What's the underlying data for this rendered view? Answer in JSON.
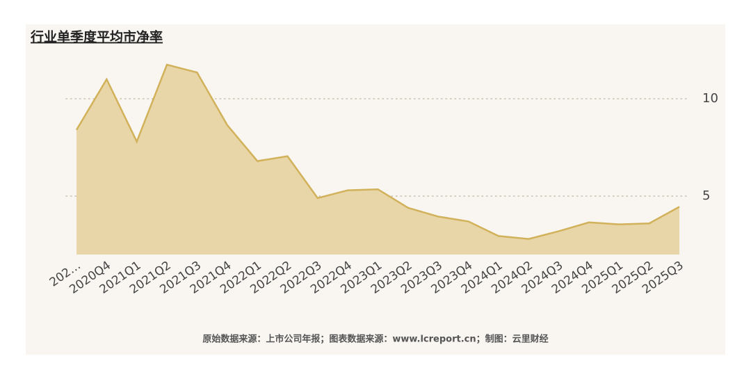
{
  "chart_data": {
    "type": "area",
    "title": "行业单季度平均市净率",
    "source": "原始数据来源：上市公司年报；图表数据来源：www.lcreport.cn；制图：云里财经",
    "categories": [
      "202…",
      "2020Q4",
      "2021Q1",
      "2021Q2",
      "2021Q3",
      "2021Q4",
      "2022Q1",
      "2022Q2",
      "2022Q3",
      "2022Q4",
      "2023Q1",
      "2023Q2",
      "2023Q3",
      "2023Q4",
      "2024Q1",
      "2024Q2",
      "2024Q3",
      "2024Q4",
      "2025Q1",
      "2025Q2",
      "2025Q3"
    ],
    "values": [
      8.4,
      11.0,
      7.8,
      11.75,
      11.35,
      8.65,
      6.8,
      7.05,
      4.9,
      5.3,
      5.35,
      4.4,
      3.95,
      3.7,
      2.95,
      2.8,
      3.2,
      3.65,
      3.55,
      3.6,
      4.45
    ],
    "color": "#d1b15a",
    "fill_color": "#e8d6a8",
    "ylim": [
      2,
      12
    ],
    "yticks": [
      5,
      10
    ],
    "y_axis_side": "right",
    "grid": true
  }
}
